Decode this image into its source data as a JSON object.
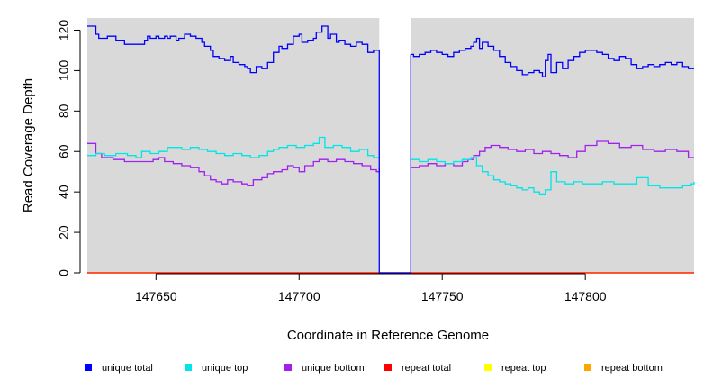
{
  "chart_data": {
    "type": "line",
    "title": "",
    "xlabel": "Coordinate in Reference Genome",
    "ylabel": "Read Coverage Depth",
    "xlim": [
      147626,
      147838
    ],
    "ylim": [
      0,
      126
    ],
    "x_ticks": [
      147650,
      147700,
      147750,
      147800
    ],
    "x_tick_labels": [
      "147650",
      "147700",
      "147750",
      "147800"
    ],
    "y_ticks": [
      0,
      20,
      40,
      60,
      80,
      100,
      120
    ],
    "y_tick_labels": [
      "0",
      "20",
      "40",
      "60",
      "80",
      "100",
      "120"
    ],
    "grid": false,
    "background": "#d9d9d9",
    "gap_region": {
      "x_start": 147728,
      "x_end": 147739,
      "color": "#ffffff"
    },
    "legend_position": "bottom",
    "series": [
      {
        "name": "unique total",
        "color": "#0000ff",
        "segments": [
          {
            "x": [
              147626,
              147629,
              147630,
              147633,
              147636,
              147639,
              147643,
              147646,
              147647,
              147648,
              147650,
              147651,
              147653,
              147654,
              147655,
              147657,
              147658,
              147660,
              147662,
              147664,
              147666,
              147667,
              147669,
              147670,
              147672,
              147674,
              147676,
              147677,
              147679,
              147681,
              147682,
              147683,
              147685,
              147687,
              147689,
              147691,
              147693,
              147694,
              147696,
              147698,
              147700,
              147701,
              147703,
              147705,
              147706,
              147708,
              147710,
              147711,
              147713,
              147714,
              147716,
              147718,
              147720,
              147722,
              147724,
              147726,
              147728
            ],
            "y": [
              122,
              118,
              116,
              117,
              115,
              113,
              113,
              115,
              117,
              116,
              117,
              116,
              117,
              116,
              117,
              115,
              116,
              118,
              117,
              116,
              114,
              112,
              110,
              107,
              106,
              105,
              107,
              104,
              103,
              102,
              101,
              99,
              102,
              101,
              104,
              109,
              112,
              111,
              113,
              117,
              118,
              114,
              115,
              116,
              119,
              122,
              116,
              118,
              114,
              115,
              113,
              112,
              114,
              113,
              109,
              110,
              108
            ]
          },
          {
            "x": [
              147739,
              147740,
              147742,
              147744,
              147746,
              147748,
              147750,
              147752,
              147754,
              147756,
              147758,
              147760,
              147761,
              147762,
              147763,
              147764,
              147766,
              147768,
              147770,
              147772,
              147774,
              147776,
              147778,
              147780,
              147782,
              147784,
              147785,
              147786,
              147787,
              147788,
              147790,
              147792,
              147794,
              147796,
              147798,
              147800,
              147802,
              147804,
              147806,
              147808,
              147810,
              147812,
              147814,
              147816,
              147818,
              147820,
              147822,
              147824,
              147826,
              147828,
              147830,
              147832,
              147834,
              147836,
              147838
            ],
            "y": [
              108,
              107,
              108,
              109,
              110,
              109,
              108,
              107,
              109,
              110,
              111,
              112,
              114,
              116,
              111,
              114,
              112,
              110,
              107,
              104,
              102,
              100,
              98,
              99,
              100,
              99,
              97,
              105,
              108,
              99,
              104,
              101,
              105,
              107,
              109,
              110,
              110,
              109,
              108,
              106,
              105,
              107,
              106,
              103,
              101,
              102,
              103,
              102,
              103,
              104,
              103,
              104,
              102,
              101,
              101
            ]
          }
        ]
      },
      {
        "name": "unique top",
        "color": "#00e5e5",
        "segments": [
          {
            "x": [
              147626,
              147629,
              147632,
              147636,
              147640,
              147643,
              147645,
              147648,
              147651,
              147654,
              147656,
              147659,
              147662,
              147665,
              147668,
              147671,
              147674,
              147677,
              147680,
              147683,
              147686,
              147689,
              147691,
              147693,
              147696,
              147699,
              147702,
              147705,
              147707,
              147709,
              147712,
              147715,
              147718,
              147721,
              147724,
              147726,
              147728
            ],
            "y": [
              58,
              59,
              58,
              59,
              58,
              57,
              60,
              59,
              60,
              62,
              62,
              61,
              62,
              61,
              60,
              59,
              58,
              59,
              58,
              57,
              58,
              60,
              61,
              62,
              63,
              62,
              63,
              64,
              67,
              62,
              63,
              62,
              60,
              61,
              58,
              57,
              56
            ]
          },
          {
            "x": [
              147739,
              147742,
              147745,
              147748,
              147751,
              147754,
              147757,
              147760,
              147762,
              147764,
              147766,
              147768,
              147770,
              147772,
              147774,
              147776,
              147778,
              147780,
              147782,
              147784,
              147786,
              147788,
              147790,
              147793,
              147796,
              147799,
              147802,
              147806,
              147810,
              147814,
              147818,
              147822,
              147826,
              147830,
              147834,
              147837,
              147838
            ],
            "y": [
              56,
              55,
              56,
              55,
              54,
              55,
              56,
              57,
              53,
              50,
              48,
              46,
              45,
              44,
              43,
              42,
              41,
              42,
              40,
              39,
              41,
              50,
              45,
              44,
              45,
              44,
              44,
              45,
              44,
              44,
              47,
              43,
              42,
              42,
              43,
              44,
              45
            ]
          }
        ]
      },
      {
        "name": "unique bottom",
        "color": "#a020f0",
        "segments": [
          {
            "x": [
              147626,
              147629,
              147631,
              147635,
              147639,
              147643,
              147646,
              147649,
              147651,
              147653,
              147656,
              147659,
              147662,
              147665,
              147667,
              147669,
              147671,
              147673,
              147675,
              147677,
              147680,
              147682,
              147684,
              147687,
              147689,
              147691,
              147694,
              147696,
              147698,
              147700,
              147702,
              147705,
              147707,
              147710,
              147713,
              147716,
              147719,
              147722,
              147725,
              147727,
              147728
            ],
            "y": [
              64,
              59,
              57,
              56,
              55,
              55,
              55,
              56,
              57,
              55,
              54,
              53,
              52,
              50,
              48,
              46,
              45,
              44,
              46,
              45,
              44,
              43,
              46,
              47,
              49,
              50,
              51,
              53,
              52,
              50,
              53,
              55,
              56,
              55,
              56,
              55,
              54,
              53,
              51,
              50,
              52
            ]
          },
          {
            "x": [
              147739,
              147742,
              147745,
              147748,
              147751,
              147754,
              147757,
              147759,
              147761,
              147763,
              147765,
              147767,
              147770,
              147773,
              147776,
              147779,
              147782,
              147785,
              147788,
              147791,
              147794,
              147797,
              147800,
              147804,
              147808,
              147812,
              147816,
              147820,
              147824,
              147828,
              147832,
              147836,
              147838
            ],
            "y": [
              52,
              53,
              54,
              53,
              54,
              53,
              55,
              56,
              58,
              60,
              62,
              63,
              62,
              61,
              60,
              61,
              59,
              60,
              59,
              58,
              57,
              60,
              63,
              65,
              64,
              62,
              63,
              61,
              60,
              61,
              60,
              57,
              57
            ]
          }
        ]
      },
      {
        "name": "repeat total",
        "color": "#ff0000",
        "segments": [
          {
            "x": [
              147626,
              147838
            ],
            "y": [
              0,
              0
            ]
          }
        ]
      },
      {
        "name": "repeat top",
        "color": "#ffff00",
        "segments": [
          {
            "x": [
              147626,
              147838
            ],
            "y": [
              0,
              0
            ]
          }
        ]
      },
      {
        "name": "repeat bottom",
        "color": "#ffa500",
        "segments": [
          {
            "x": [
              147626,
              147838
            ],
            "y": [
              0,
              0
            ]
          }
        ]
      }
    ]
  }
}
